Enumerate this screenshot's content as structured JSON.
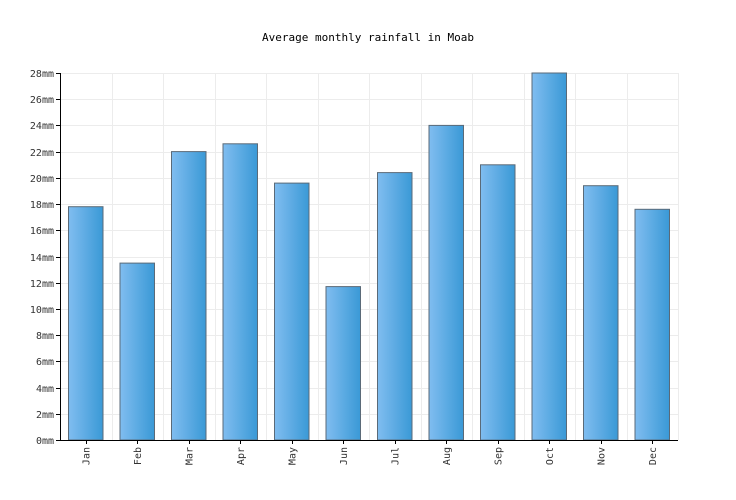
{
  "chart_data": {
    "type": "bar",
    "title": "Average monthly rainfall in Moab",
    "categories": [
      "Jan",
      "Feb",
      "Mar",
      "Apr",
      "May",
      "Jun",
      "Jul",
      "Aug",
      "Sep",
      "Oct",
      "Nov",
      "Dec"
    ],
    "values": [
      17.8,
      13.5,
      22.0,
      22.6,
      19.6,
      11.7,
      20.4,
      24.0,
      21.0,
      28.1,
      19.4,
      17.6
    ],
    "unit": "mm",
    "ylim": [
      0,
      28
    ],
    "yticks": [
      0,
      2,
      4,
      6,
      8,
      10,
      12,
      14,
      16,
      18,
      20,
      22,
      24,
      26,
      28
    ],
    "ytick_labels": [
      "0mm",
      "2mm",
      "4mm",
      "6mm",
      "8mm",
      "10mm",
      "12mm",
      "14mm",
      "16mm",
      "18mm",
      "20mm",
      "22mm",
      "24mm",
      "26mm",
      "28mm"
    ],
    "xlabel": "",
    "ylabel": "",
    "grid": true,
    "colors": {
      "bar_light": "#80bdf0",
      "bar_dark": "#3a99d6",
      "bar_edge": "#5a6a78",
      "grid": "#ececec",
      "axis": "#000000"
    }
  }
}
